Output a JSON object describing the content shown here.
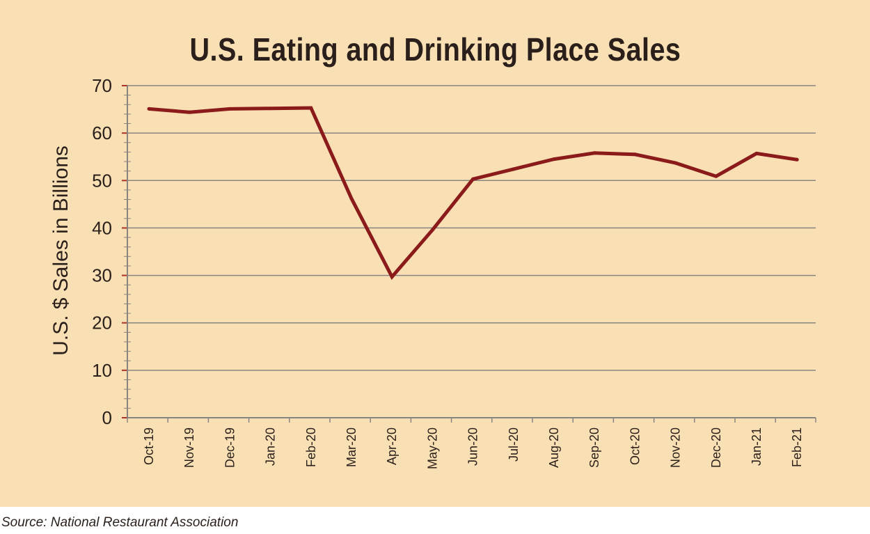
{
  "source": "Source: National Restaurant Association",
  "colors": {
    "background": "#f8dfb4",
    "line": "#8b1a1a",
    "grid": "#8a8480",
    "tick": "#b0302a"
  },
  "chart_data": {
    "type": "line",
    "title": "U.S. Eating and Drinking Place Sales",
    "xlabel": "",
    "ylabel": "U.S. $ Sales in Billions",
    "ylim": [
      0,
      70
    ],
    "yticks": [
      "0",
      "10",
      "20",
      "30",
      "40",
      "50",
      "60",
      "70"
    ],
    "grid": true,
    "categories": [
      "Oct-19",
      "Nov-19",
      "Dec-19",
      "Jan-20",
      "Feb-20",
      "Mar-20",
      "Apr-20",
      "May-20",
      "Jun-20",
      "Jul-20",
      "Aug-20",
      "Sep-20",
      "Oct-20",
      "Nov-20",
      "Dec-20",
      "Jan-21",
      "Feb-21"
    ],
    "series": [
      {
        "values": [
          65.1,
          64.4,
          65.1,
          65.2,
          65.3,
          46.2,
          29.7,
          39.6,
          50.3,
          52.4,
          54.5,
          55.8,
          55.5,
          53.7,
          50.9,
          55.7,
          54.4
        ]
      }
    ]
  }
}
